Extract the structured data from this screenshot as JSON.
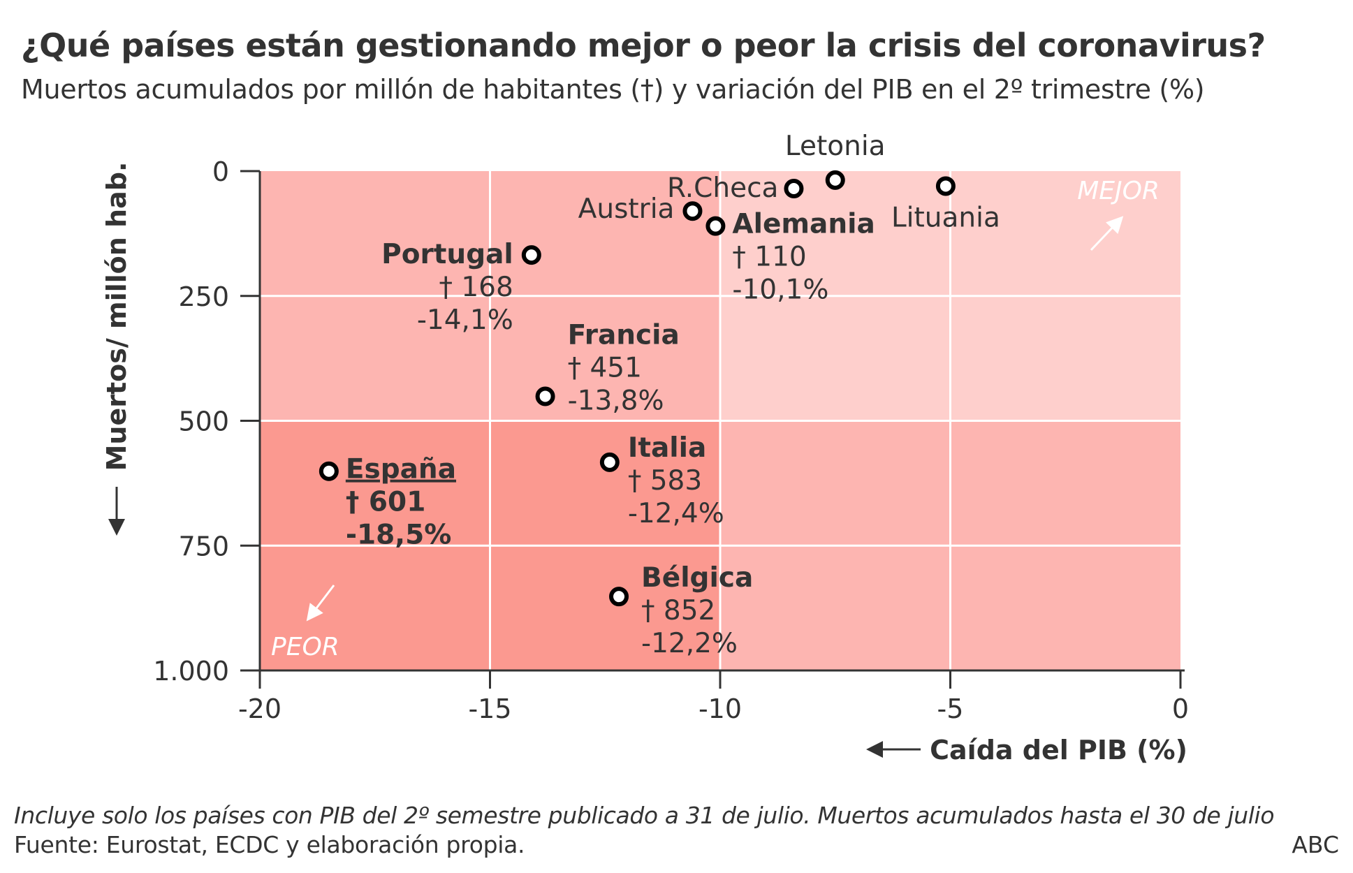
{
  "header": {
    "title": "¿Qué países están gestionando mejor o peor la crisis del coronavirus?",
    "subtitle": "Muertos acumulados por millón de habitantes (†) y variación del PIB en el 2º trimestre (%)"
  },
  "footer": {
    "note": "Incluye solo los países con PIB del 2º semestre publicado a 31 de julio. Muertos acumulados hasta el 30 de julio",
    "source": "Fuente: Eurostat, ECDC y elaboración propia.",
    "brand": "ABC"
  },
  "chart_data": {
    "type": "scatter",
    "xlabel": "Caída del PIB (%)",
    "ylabel": "Muertos/ millón hab.",
    "xlim": [
      -20,
      0
    ],
    "ylim": [
      0,
      1000
    ],
    "y_inverted": true,
    "x_ticks": [
      -20,
      -15,
      -10,
      -5,
      0
    ],
    "x_tick_labels": [
      "-20",
      "-15",
      "-10",
      "-5",
      "0"
    ],
    "y_ticks": [
      0,
      250,
      500,
      750,
      1000
    ],
    "y_tick_labels": [
      "0",
      "250",
      "500",
      "750",
      "1.000"
    ],
    "grid": true,
    "quadrant_labels": {
      "better": "MEJOR",
      "worse": "PEOR"
    },
    "colors": {
      "worst": "#fb9990",
      "mid": "#fdb5b1",
      "best": "#fecfcc",
      "grid": "#ffffff",
      "axis": "#333333",
      "marker_fill": "#ffffff",
      "marker_stroke": "#000000"
    },
    "points": [
      {
        "name": "Letonia",
        "x": -7.5,
        "y": 18
      },
      {
        "name": "R.Checa",
        "x": -8.4,
        "y": 35
      },
      {
        "name": "Lituania",
        "x": -5.1,
        "y": 30
      },
      {
        "name": "Austria",
        "x": -10.6,
        "y": 80
      },
      {
        "name": "Alemania",
        "x": -10.1,
        "y": 110,
        "deaths_label": "† 110",
        "gdp_label": "-10,1%"
      },
      {
        "name": "Portugal",
        "x": -14.1,
        "y": 168,
        "deaths_label": "† 168",
        "gdp_label": "-14,1%"
      },
      {
        "name": "Francia",
        "x": -13.8,
        "y": 451,
        "deaths_label": "† 451",
        "gdp_label": "-13,8%"
      },
      {
        "name": "Italia",
        "x": -12.4,
        "y": 583,
        "deaths_label": "† 583",
        "gdp_label": "-12,4%"
      },
      {
        "name": "España",
        "x": -18.5,
        "y": 601,
        "deaths_label": "† 601",
        "gdp_label": "-18,5%"
      },
      {
        "name": "Bélgica",
        "x": -12.2,
        "y": 852,
        "deaths_label": "† 852",
        "gdp_label": "-12,2%"
      }
    ]
  }
}
